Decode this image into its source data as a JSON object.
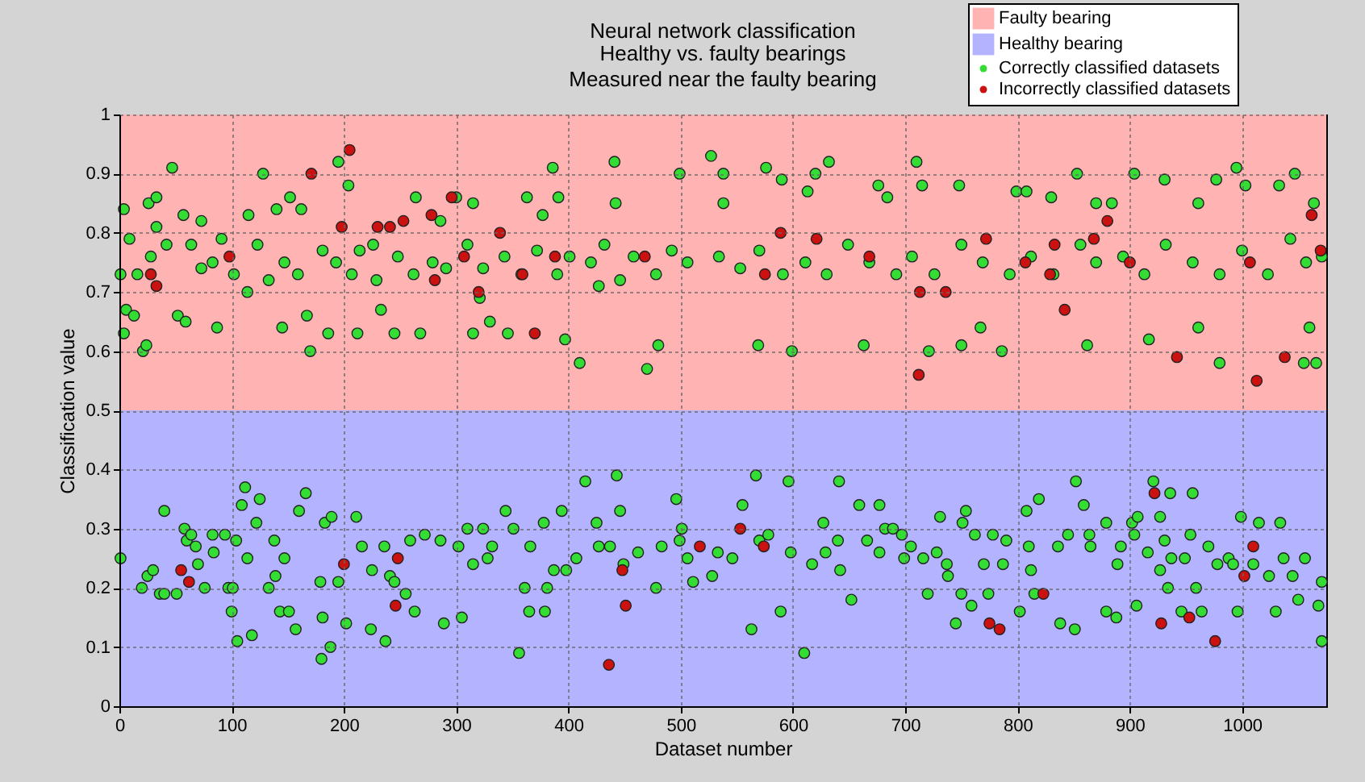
{
  "chart_data": {
    "type": "scatter",
    "title": "Neural network classification",
    "subtitle": "Healthy vs. faulty bearings\nMeasured near the faulty bearing",
    "xlabel": "Dataset number",
    "ylabel": "Classification value",
    "xlim": [
      0,
      1075
    ],
    "ylim": [
      0,
      1
    ],
    "xticks": [
      0,
      100,
      200,
      300,
      400,
      500,
      600,
      700,
      800,
      900,
      1000
    ],
    "yticks": [
      0,
      0.1,
      0.2,
      0.3,
      0.4,
      0.5,
      0.6,
      0.7,
      0.8,
      0.9,
      1
    ],
    "grid": true,
    "legend": "top right",
    "marker": "circle",
    "bands": [
      {
        "axis": "y",
        "from": 0.5,
        "to": 1,
        "label": "Faulty bearing",
        "color": "#ffb3b3"
      },
      {
        "axis": "y",
        "from": 0,
        "to": 0.5,
        "label": "Healthy bearing",
        "color": "#b3b3ff"
      }
    ],
    "series": [
      {
        "name": "Correctly classified datasets",
        "color": "#33dd33",
        "x": [
          4,
          4,
          6,
          9,
          13,
          21,
          24,
          26,
          33,
          33,
          47,
          52,
          57,
          59,
          73,
          87,
          91,
          114,
          115,
          128,
          140,
          145,
          152,
          162,
          167,
          170,
          186,
          195,
          204,
          212,
          233,
          245,
          264,
          268,
          286,
          300,
          315,
          315,
          321,
          330,
          346,
          363,
          377,
          386,
          391,
          397,
          410,
          427,
          441,
          442,
          470,
          480,
          499,
          1,
          16,
          28,
          42,
          64,
          73,
          83,
          102,
          123,
          133,
          147,
          159,
          181,
          193,
          207,
          214,
          226,
          229,
          248,
          262,
          279,
          291,
          310,
          324,
          343,
          358,
          372,
          390,
          401,
          420,
          432,
          446,
          458,
          478,
          492,
          506,
          527,
          538,
          538,
          569,
          576,
          590,
          599,
          613,
          620,
          632,
          663,
          676,
          684,
          710,
          715,
          721,
          748,
          750,
          767,
          786,
          799,
          808,
          830,
          853,
          862,
          870,
          884,
          904,
          917,
          931,
          961,
          961,
          977,
          980,
          995,
          1003,
          1033,
          1047,
          1055,
          1066,
          1064,
          1060,
          534,
          553,
          570,
          591,
          611,
          630,
          649,
          668,
          692,
          706,
          726,
          750,
          769,
          793,
          812,
          832,
          856,
          870,
          894,
          913,
          932,
          956,
          980,
          1000,
          1023,
          1043,
          1057,
          1071,
          1,
          20,
          25,
          30,
          36,
          40,
          40,
          51,
          58,
          60,
          64,
          68,
          70,
          76,
          83,
          84,
          94,
          97,
          100,
          101,
          104,
          105,
          109,
          112,
          114,
          118,
          122,
          125,
          133,
          138,
          139,
          143,
          147,
          151,
          157,
          160,
          166,
          179,
          180,
          181,
          183,
          188,
          189,
          195,
          202,
          211,
          216,
          224,
          225,
          237,
          236,
          241,
          245,
          255,
          259,
          263,
          272,
          286,
          289,
          302,
          305,
          310,
          315,
          324,
          328,
          332,
          344,
          351,
          356,
          361,
          365,
          366,
          378,
          381,
          379,
          387,
          394,
          398,
          407,
          415,
          425,
          427,
          437,
          443,
          446,
          449,
          462,
          478,
          483,
          496,
          499,
          501,
          506,
          511,
          528,
          533,
          546,
          555,
          563,
          567,
          570,
          578,
          589,
          596,
          598,
          610,
          617,
          627,
          629,
          640,
          642,
          641,
          652,
          659,
          666,
          677,
          677,
          682,
          689,
          697,
          699,
          705,
          716,
          720,
          728,
          731,
          737,
          738,
          745,
          750,
          751,
          754,
          759,
          762,
          770,
          774,
          778,
          787,
          790,
          802,
          808,
          810,
          812,
          815,
          819,
          838,
          836,
          852,
          845,
          851,
          859,
          864,
          865,
          879,
          879,
          888,
          889,
          892,
          902,
          907,
          904,
          906,
          916,
          921,
          927,
          927,
          931,
          934,
          936,
          937,
          946,
          949,
          954,
          956,
          959,
          964,
          970,
          978,
          988,
          992,
          996,
          999,
          1010,
          1015,
          1024,
          1030,
          1034,
          1037,
          1045,
          1050,
          1056,
          1068,
          1071,
          1071
        ],
        "values": [
          0.84,
          0.63,
          0.67,
          0.79,
          0.66,
          0.6,
          0.61,
          0.85,
          0.86,
          0.81,
          0.91,
          0.66,
          0.83,
          0.65,
          0.82,
          0.64,
          0.79,
          0.7,
          0.83,
          0.9,
          0.84,
          0.64,
          0.86,
          0.84,
          0.66,
          0.6,
          0.63,
          0.92,
          0.88,
          0.63,
          0.67,
          0.63,
          0.86,
          0.63,
          0.82,
          0.86,
          0.85,
          0.63,
          0.69,
          0.65,
          0.63,
          0.86,
          0.83,
          0.91,
          0.86,
          0.62,
          0.58,
          0.71,
          0.92,
          0.85,
          0.57,
          0.61,
          0.9,
          0.73,
          0.73,
          0.76,
          0.78,
          0.78,
          0.74,
          0.75,
          0.73,
          0.78,
          0.72,
          0.75,
          0.73,
          0.77,
          0.75,
          0.73,
          0.77,
          0.78,
          0.72,
          0.76,
          0.73,
          0.75,
          0.74,
          0.78,
          0.74,
          0.76,
          0.73,
          0.77,
          0.73,
          0.76,
          0.75,
          0.78,
          0.72,
          0.76,
          0.73,
          0.77,
          0.75,
          0.93,
          0.9,
          0.85,
          0.61,
          0.91,
          0.89,
          0.6,
          0.87,
          0.9,
          0.92,
          0.61,
          0.88,
          0.86,
          0.92,
          0.88,
          0.6,
          0.88,
          0.61,
          0.64,
          0.6,
          0.87,
          0.87,
          0.86,
          0.9,
          0.61,
          0.85,
          0.85,
          0.9,
          0.62,
          0.89,
          0.85,
          0.64,
          0.89,
          0.58,
          0.91,
          0.88,
          0.88,
          0.9,
          0.58,
          0.58,
          0.85,
          0.64,
          0.76,
          0.74,
          0.77,
          0.73,
          0.75,
          0.73,
          0.78,
          0.75,
          0.73,
          0.76,
          0.73,
          0.78,
          0.75,
          0.73,
          0.76,
          0.73,
          0.78,
          0.75,
          0.76,
          0.73,
          0.78,
          0.75,
          0.73,
          0.77,
          0.73,
          0.79,
          0.75,
          0.76,
          0.25,
          0.2,
          0.22,
          0.23,
          0.19,
          0.19,
          0.33,
          0.19,
          0.3,
          0.28,
          0.29,
          0.27,
          0.24,
          0.2,
          0.29,
          0.26,
          0.29,
          0.2,
          0.16,
          0.2,
          0.28,
          0.11,
          0.34,
          0.37,
          0.25,
          0.12,
          0.31,
          0.35,
          0.2,
          0.28,
          0.22,
          0.16,
          0.25,
          0.16,
          0.13,
          0.33,
          0.36,
          0.21,
          0.08,
          0.15,
          0.31,
          0.1,
          0.32,
          0.21,
          0.14,
          0.32,
          0.27,
          0.13,
          0.23,
          0.11,
          0.27,
          0.22,
          0.21,
          0.19,
          0.28,
          0.16,
          0.29,
          0.28,
          0.14,
          0.27,
          0.15,
          0.3,
          0.24,
          0.3,
          0.25,
          0.27,
          0.33,
          0.3,
          0.09,
          0.2,
          0.16,
          0.27,
          0.31,
          0.2,
          0.16,
          0.23,
          0.33,
          0.23,
          0.25,
          0.38,
          0.31,
          0.27,
          0.27,
          0.39,
          0.33,
          0.24,
          0.26,
          0.2,
          0.27,
          0.35,
          0.28,
          0.3,
          0.25,
          0.21,
          0.22,
          0.26,
          0.25,
          0.34,
          0.13,
          0.39,
          0.28,
          0.29,
          0.16,
          0.38,
          0.26,
          0.09,
          0.24,
          0.31,
          0.26,
          0.28,
          0.23,
          0.38,
          0.18,
          0.34,
          0.28,
          0.26,
          0.34,
          0.3,
          0.3,
          0.29,
          0.25,
          0.27,
          0.25,
          0.19,
          0.26,
          0.32,
          0.24,
          0.22,
          0.14,
          0.19,
          0.31,
          0.33,
          0.17,
          0.29,
          0.24,
          0.19,
          0.29,
          0.24,
          0.28,
          0.16,
          0.33,
          0.27,
          0.23,
          0.19,
          0.35,
          0.14,
          0.27,
          0.38,
          0.29,
          0.13,
          0.34,
          0.29,
          0.27,
          0.31,
          0.16,
          0.15,
          0.24,
          0.27,
          0.31,
          0.32,
          0.29,
          0.17,
          0.26,
          0.38,
          0.23,
          0.32,
          0.28,
          0.2,
          0.36,
          0.25,
          0.16,
          0.25,
          0.29,
          0.36,
          0.2,
          0.16,
          0.27,
          0.24,
          0.25,
          0.24,
          0.16,
          0.32,
          0.24,
          0.31,
          0.22,
          0.16,
          0.31,
          0.25,
          0.22,
          0.18,
          0.25,
          0.17,
          0.21,
          0.11
        ]
      },
      {
        "name": "Incorrectly classified datasets",
        "color": "#cc1111",
        "x": [
          28,
          33,
          98,
          171,
          205,
          198,
          230,
          241,
          253,
          278,
          281,
          296,
          307,
          320,
          339,
          359,
          370,
          388,
          468,
          575,
          589,
          621,
          668,
          712,
          713,
          736,
          772,
          807,
          829,
          833,
          842,
          868,
          880,
          900,
          942,
          1007,
          1013,
          1038,
          1062,
          1070,
          55,
          62,
          200,
          248,
          246,
          436,
          448,
          451,
          517,
          553,
          574,
          775,
          784,
          823,
          922,
          928,
          953,
          976,
          1002,
          1010
        ],
        "values": [
          0.73,
          0.71,
          0.76,
          0.9,
          0.94,
          0.81,
          0.81,
          0.81,
          0.82,
          0.83,
          0.72,
          0.86,
          0.76,
          0.7,
          0.8,
          0.73,
          0.63,
          0.76,
          0.76,
          0.73,
          0.8,
          0.79,
          0.76,
          0.56,
          0.7,
          0.7,
          0.79,
          0.75,
          0.73,
          0.78,
          0.67,
          0.79,
          0.82,
          0.75,
          0.59,
          0.75,
          0.55,
          0.59,
          0.83,
          0.77,
          0.23,
          0.21,
          0.24,
          0.25,
          0.17,
          0.07,
          0.23,
          0.17,
          0.27,
          0.3,
          0.27,
          0.14,
          0.13,
          0.19,
          0.36,
          0.14,
          0.15,
          0.11,
          0.22,
          0.27
        ]
      }
    ]
  }
}
